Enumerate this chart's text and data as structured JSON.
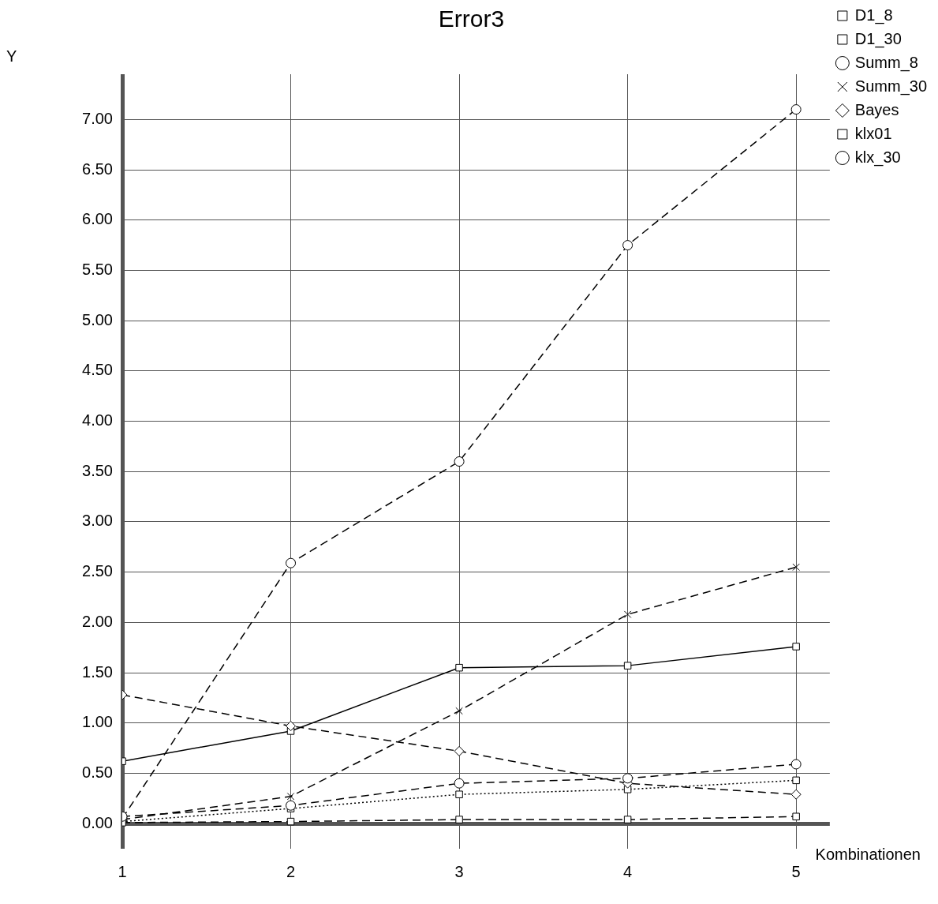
{
  "chart_data": {
    "type": "line",
    "title": "Error3",
    "xlabel": "Kombinationen",
    "ylabel": "Y",
    "x": [
      1,
      2,
      3,
      4,
      5
    ],
    "xlim": [
      1,
      5.2
    ],
    "xticks": [
      1,
      2,
      3,
      4,
      5
    ],
    "ylim": [
      -0.25,
      7.45
    ],
    "yticks": [
      {
        "value": 0,
        "label": "0.00"
      },
      {
        "value": 0.5,
        "label": "0.50"
      },
      {
        "value": 1,
        "label": "1.00"
      },
      {
        "value": 1.5,
        "label": "1.50"
      },
      {
        "value": 2,
        "label": "2.00"
      },
      {
        "value": 2.5,
        "label": "2.50"
      },
      {
        "value": 3,
        "label": "3.00"
      },
      {
        "value": 3.5,
        "label": "3.50"
      },
      {
        "value": 4,
        "label": "4.00"
      },
      {
        "value": 4.5,
        "label": "4.50"
      },
      {
        "value": 5,
        "label": "5.00"
      },
      {
        "value": 5.5,
        "label": "5.50"
      },
      {
        "value": 6,
        "label": "6.00"
      },
      {
        "value": 6.5,
        "label": "6.50"
      },
      {
        "value": 7,
        "label": "7.00"
      }
    ],
    "grid": true,
    "legend": "top right",
    "series": [
      {
        "name": "D1_8",
        "color": "#000000",
        "marker": "square",
        "line_style": "solid",
        "values": [
          0.62,
          0.92,
          1.55,
          1.57,
          1.76
        ]
      },
      {
        "name": "D1_30",
        "color": "#000000",
        "marker": "square",
        "line_style": "dotted",
        "values": [
          0.02,
          0.15,
          0.29,
          0.34,
          0.43
        ]
      },
      {
        "name": "Summ_8",
        "color": "#000000",
        "marker": "circle",
        "line_style": "dashed",
        "values": [
          0.05,
          2.59,
          3.6,
          5.75,
          7.1
        ]
      },
      {
        "name": "Summ_30",
        "color": "#000000",
        "marker": "cross",
        "line_style": "dashed",
        "values": [
          0.04,
          0.27,
          1.12,
          2.08,
          2.55
        ]
      },
      {
        "name": "Bayes",
        "color": "#000000",
        "marker": "diamond",
        "line_style": "dashed",
        "values": [
          1.28,
          0.97,
          0.72,
          0.4,
          0.29
        ]
      },
      {
        "name": "klx01",
        "color": "#000000",
        "marker": "square",
        "line_style": "dashed",
        "values": [
          0.01,
          0.02,
          0.04,
          0.04,
          0.07
        ]
      },
      {
        "name": "klx_30",
        "color": "#000000",
        "marker": "circle",
        "line_style": "dashed",
        "values": [
          0.07,
          0.18,
          0.4,
          0.45,
          0.59
        ]
      }
    ]
  }
}
